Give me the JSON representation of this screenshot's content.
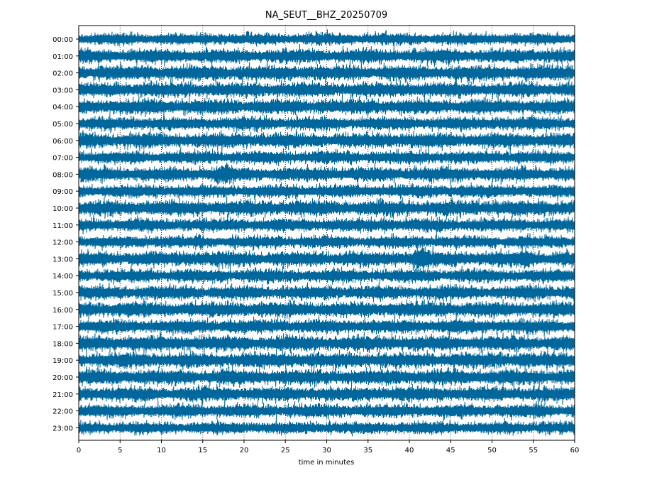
{
  "chart_data": {
    "type": "line",
    "title": "NA_SEUT__BHZ_20250709",
    "xlabel": "time in minutes",
    "ylabel": "",
    "xlim": [
      0,
      60
    ],
    "x_ticks": [
      0,
      5,
      10,
      15,
      20,
      25,
      30,
      35,
      40,
      45,
      50,
      55,
      60
    ],
    "x_tick_labels": [
      "0",
      "5",
      "10",
      "15",
      "20",
      "25",
      "30",
      "35",
      "40",
      "45",
      "50",
      "55",
      "60"
    ],
    "vertical_grid": "dotted",
    "color": "#00679c",
    "rows": [
      "00:00",
      "01:00",
      "02:00",
      "03:00",
      "04:00",
      "05:00",
      "06:00",
      "07:00",
      "08:00",
      "09:00",
      "10:00",
      "11:00",
      "12:00",
      "13:00",
      "14:00",
      "15:00",
      "16:00",
      "17:00",
      "18:00",
      "19:00",
      "20:00",
      "21:00",
      "22:00",
      "23:00"
    ],
    "events": [
      {
        "row": "13:00",
        "minute": 41.5,
        "relative_amplitude": 2.0
      },
      {
        "row": "13:00",
        "minute": 54.2,
        "relative_amplitude": 1.6
      },
      {
        "row": "11:00",
        "minute": 37.5,
        "relative_amplitude": 1.4
      },
      {
        "row": "08:00",
        "minute": 17.5,
        "relative_amplitude": 1.5
      }
    ]
  }
}
